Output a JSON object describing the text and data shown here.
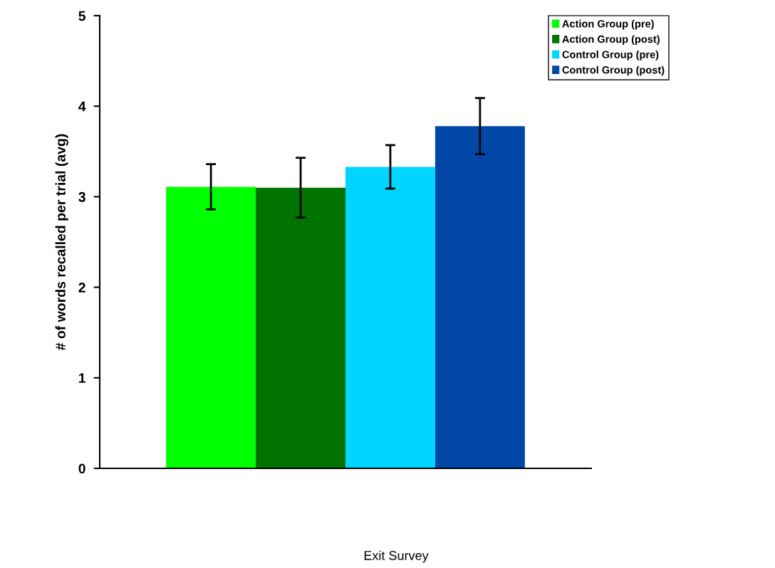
{
  "chart_data": {
    "type": "bar",
    "categories": [
      null
    ],
    "annotations": [
      "Exit Survey"
    ],
    "ylabel": "# of words recalled per trial (avg)",
    "ylim": [
      0,
      5
    ],
    "yticks": [
      0,
      1,
      2,
      3,
      4,
      5
    ],
    "grid": false,
    "legend": "top right",
    "series": [
      {
        "name": "Action Group (pre)",
        "color": "#00ff00",
        "values": [
          3.11
        ],
        "errors": [
          0.25
        ]
      },
      {
        "name": "Action Group (post)",
        "color": "#007300",
        "values": [
          3.1
        ],
        "errors": [
          0.33
        ]
      },
      {
        "name": "Control Group (pre)",
        "color": "#00d5ff",
        "values": [
          3.33
        ],
        "errors": [
          0.24
        ]
      },
      {
        "name": "Control Group (post)",
        "color": "#0047a8",
        "values": [
          3.78
        ],
        "errors": [
          0.31
        ]
      }
    ]
  }
}
